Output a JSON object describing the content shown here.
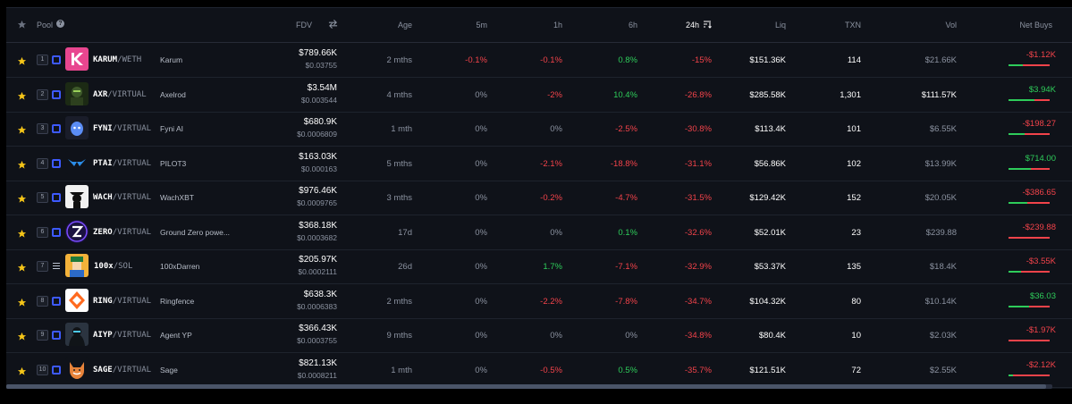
{
  "header": {
    "pool": "Pool",
    "fdv": "FDV",
    "age": "Age",
    "m5": "5m",
    "h1": "1h",
    "h6": "6h",
    "h24": "24h",
    "liq": "Liq",
    "txn": "TXN",
    "vol": "Vol",
    "net_buys": "Net Buys"
  },
  "colors": {
    "positive": "#2ecc5a",
    "negative": "#f2434a",
    "background": "#0f1219",
    "chain_base": "#3d5afe"
  },
  "rows": [
    {
      "rank": "1",
      "chain": "base",
      "avatar": "karum",
      "symbol": "KARUM",
      "quote": "/WETH",
      "name": "Karum",
      "fdv": "$789.66K",
      "price": "$0.03755",
      "age": "2 mths",
      "m5": "-0.1%",
      "h1": "-0.1%",
      "h6": "0.8%",
      "h24": "-15%",
      "liq": "$151.36K",
      "txn": "114",
      "vol": "$21.66K",
      "net_buys": "-$1.12K",
      "net_buy_share": 0.35
    },
    {
      "rank": "2",
      "chain": "base",
      "avatar": "axr",
      "symbol": "AXR",
      "quote": "/VIRTUAL",
      "name": "Axelrod",
      "fdv": "$3.54M",
      "price": "$0.003544",
      "age": "4 mths",
      "m5": "0%",
      "h1": "-2%",
      "h6": "10.4%",
      "h24": "-26.8%",
      "liq": "$285.58K",
      "txn": "1,301",
      "vol": "$111.57K",
      "net_buys": "$3.94K",
      "net_buy_share": 0.62
    },
    {
      "rank": "3",
      "chain": "base",
      "avatar": "fyni",
      "symbol": "FYNI",
      "quote": "/VIRTUAL",
      "name": "Fyni AI",
      "fdv": "$680.9K",
      "price": "$0.0006809",
      "age": "1 mth",
      "m5": "0%",
      "h1": "0%",
      "h6": "-2.5%",
      "h24": "-30.8%",
      "liq": "$113.4K",
      "txn": "101",
      "vol": "$6.55K",
      "net_buys": "-$198.27",
      "net_buy_share": 0.4
    },
    {
      "rank": "4",
      "chain": "base",
      "avatar": "ptai",
      "symbol": "PTAI",
      "quote": "/VIRTUAL",
      "name": "PILOT3",
      "fdv": "$163.03K",
      "price": "$0.000163",
      "age": "5 mths",
      "m5": "0%",
      "h1": "-2.1%",
      "h6": "-18.8%",
      "h24": "-31.1%",
      "liq": "$56.86K",
      "txn": "102",
      "vol": "$13.99K",
      "net_buys": "$714.00",
      "net_buy_share": 0.55
    },
    {
      "rank": "5",
      "chain": "base",
      "avatar": "wach",
      "symbol": "WACH",
      "quote": "/VIRTUAL",
      "name": "WachXBT",
      "fdv": "$976.46K",
      "price": "$0.0009765",
      "age": "3 mths",
      "m5": "0%",
      "h1": "-0.2%",
      "h6": "-4.7%",
      "h24": "-31.5%",
      "liq": "$129.42K",
      "txn": "152",
      "vol": "$20.05K",
      "net_buys": "-$386.65",
      "net_buy_share": 0.45
    },
    {
      "rank": "6",
      "chain": "base",
      "avatar": "zero",
      "symbol": "ZERO",
      "quote": "/VIRTUAL",
      "name": "Ground Zero powe...",
      "fdv": "$368.18K",
      "price": "$0.0003682",
      "age": "17d",
      "m5": "0%",
      "h1": "0%",
      "h6": "0.1%",
      "h24": "-32.6%",
      "liq": "$52.01K",
      "txn": "23",
      "vol": "$239.88",
      "net_buys": "-$239.88",
      "net_buy_share": 0.0
    },
    {
      "rank": "7",
      "chain": "sol",
      "avatar": "darren",
      "symbol": "100x",
      "quote": "/SOL",
      "name": "100xDarren",
      "fdv": "$205.97K",
      "price": "$0.0002111",
      "age": "26d",
      "m5": "0%",
      "h1": "1.7%",
      "h6": "-7.1%",
      "h24": "-32.9%",
      "liq": "$53.37K",
      "txn": "135",
      "vol": "$18.4K",
      "net_buys": "-$3.55K",
      "net_buy_share": 0.3
    },
    {
      "rank": "8",
      "chain": "base",
      "avatar": "ring",
      "symbol": "RING",
      "quote": "/VIRTUAL",
      "name": "Ringfence",
      "fdv": "$638.3K",
      "price": "$0.0006383",
      "age": "2 mths",
      "m5": "0%",
      "h1": "-2.2%",
      "h6": "-7.8%",
      "h24": "-34.7%",
      "liq": "$104.32K",
      "txn": "80",
      "vol": "$10.14K",
      "net_buys": "$36.03",
      "net_buy_share": 0.5
    },
    {
      "rank": "9",
      "chain": "base",
      "avatar": "aiyp",
      "symbol": "AIYP",
      "quote": "/VIRTUAL",
      "name": "Agent YP",
      "fdv": "$366.43K",
      "price": "$0.0003755",
      "age": "9 mths",
      "m5": "0%",
      "h1": "0%",
      "h6": "0%",
      "h24": "-34.8%",
      "liq": "$80.4K",
      "txn": "10",
      "vol": "$2.03K",
      "net_buys": "-$1.97K",
      "net_buy_share": 0.0
    },
    {
      "rank": "10",
      "chain": "base",
      "avatar": "sage",
      "symbol": "SAGE",
      "quote": "/VIRTUAL",
      "name": "Sage",
      "fdv": "$821.13K",
      "price": "$0.0008211",
      "age": "1 mth",
      "m5": "0%",
      "h1": "-0.5%",
      "h6": "0.5%",
      "h24": "-35.7%",
      "liq": "$121.51K",
      "txn": "72",
      "vol": "$2.55K",
      "net_buys": "-$2.12K",
      "net_buy_share": 0.1
    }
  ]
}
